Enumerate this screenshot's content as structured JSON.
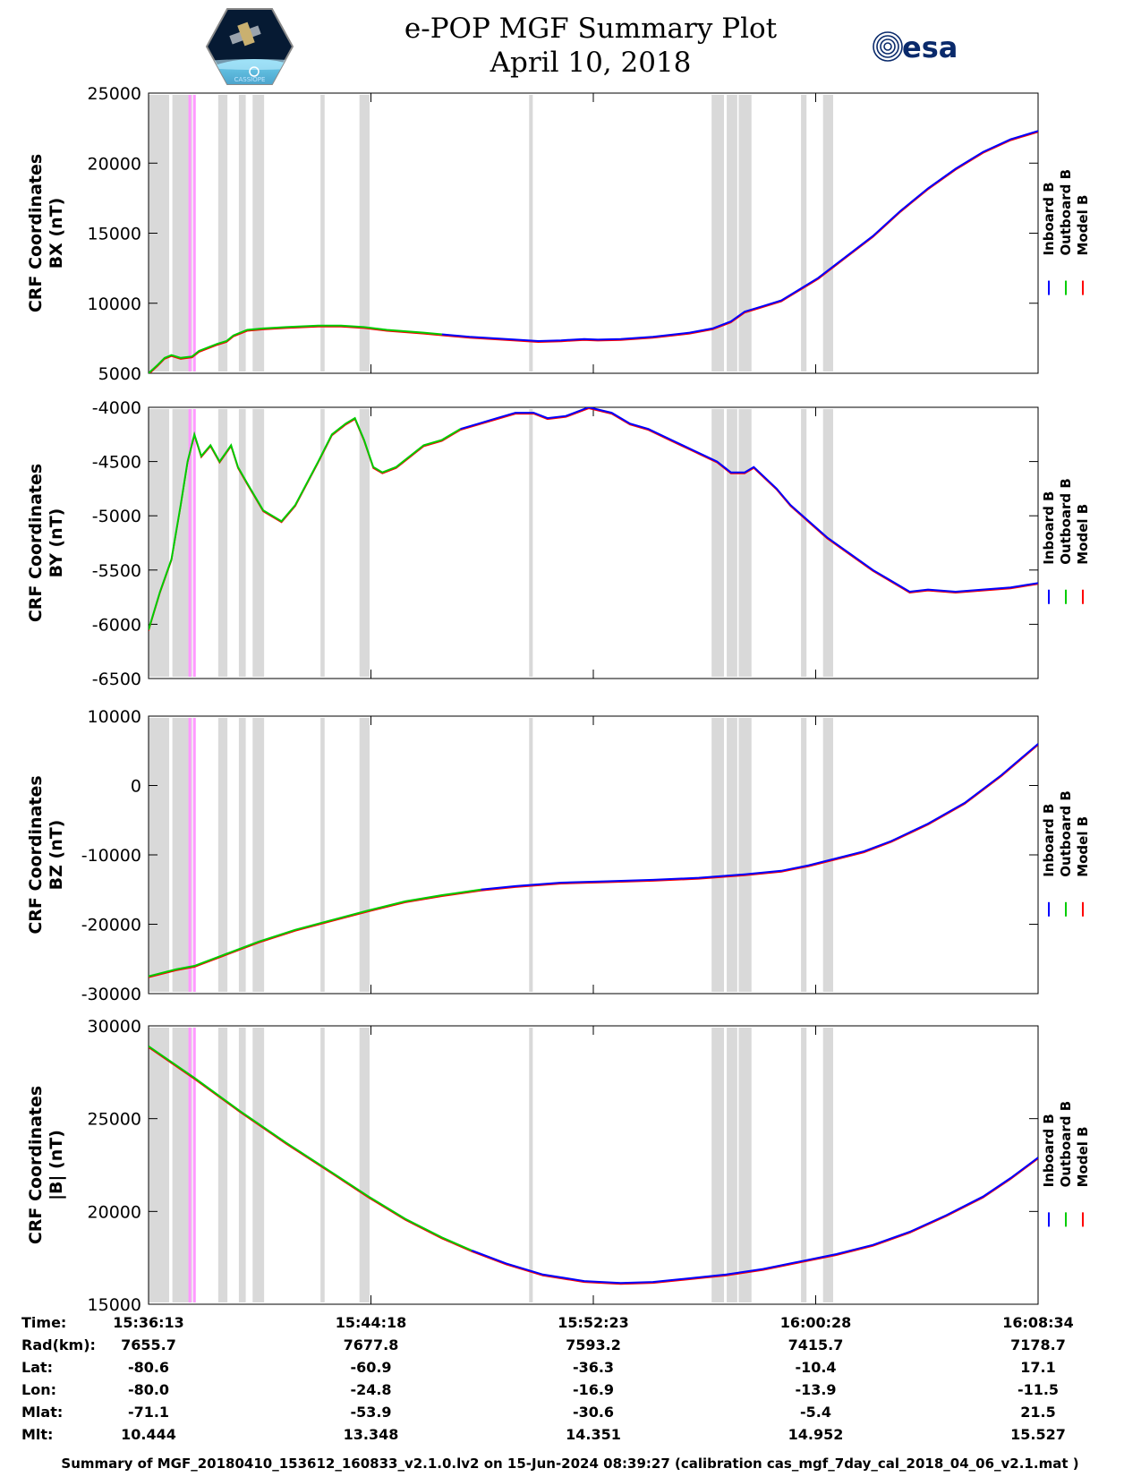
{
  "header": {
    "title": "e-POP MGF Summary Plot",
    "date": "April 10, 2018",
    "left_logo_text": "CASSIOPE",
    "right_logo_text": "esa"
  },
  "colors": {
    "inboard": "#0000ff",
    "outboard": "#00cc00",
    "model": "#ff0000",
    "shade": "#d9d9d9",
    "highlight": "#ff99ff"
  },
  "chart_data": {
    "type": "line",
    "x": {
      "tmin_s": 0,
      "tmax_s": 1940
    },
    "shade_intervals_s": [
      [
        0,
        45
      ],
      [
        52,
        95
      ],
      [
        152,
        172
      ],
      [
        197,
        212
      ],
      [
        227,
        252
      ],
      [
        375,
        384
      ],
      [
        460,
        482
      ],
      [
        830,
        838
      ],
      [
        1228,
        1255
      ],
      [
        1261,
        1284
      ],
      [
        1287,
        1315
      ],
      [
        1423,
        1435
      ],
      [
        1471,
        1493
      ]
    ],
    "highlight_intervals_s": [
      [
        87,
        93
      ],
      [
        97,
        103
      ]
    ],
    "legend": [
      "Inboard B",
      "Outboard B",
      "Model B"
    ],
    "panels": [
      {
        "name": "bx",
        "ylabel1": "CRF Coordinates",
        "ylabel2": "BX (nT)",
        "ylim": [
          5000,
          25000
        ],
        "yticks": [
          5000,
          10000,
          15000,
          20000,
          25000
        ],
        "yticklabels": [
          "5000",
          "10000",
          "15000",
          "20000",
          "25000"
        ],
        "switch_t": 640,
        "points": [
          [
            0,
            5000
          ],
          [
            20,
            5600
          ],
          [
            35,
            6100
          ],
          [
            50,
            6300
          ],
          [
            70,
            6100
          ],
          [
            95,
            6200
          ],
          [
            110,
            6600
          ],
          [
            150,
            7100
          ],
          [
            170,
            7300
          ],
          [
            185,
            7700
          ],
          [
            215,
            8100
          ],
          [
            250,
            8200
          ],
          [
            300,
            8300
          ],
          [
            370,
            8400
          ],
          [
            420,
            8400
          ],
          [
            470,
            8300
          ],
          [
            520,
            8100
          ],
          [
            600,
            7900
          ],
          [
            700,
            7600
          ],
          [
            800,
            7400
          ],
          [
            850,
            7300
          ],
          [
            900,
            7350
          ],
          [
            950,
            7450
          ],
          [
            980,
            7400
          ],
          [
            1030,
            7450
          ],
          [
            1100,
            7600
          ],
          [
            1180,
            7900
          ],
          [
            1230,
            8200
          ],
          [
            1270,
            8700
          ],
          [
            1300,
            9400
          ],
          [
            1340,
            9800
          ],
          [
            1380,
            10200
          ],
          [
            1420,
            11000
          ],
          [
            1460,
            11800
          ],
          [
            1520,
            13300
          ],
          [
            1580,
            14800
          ],
          [
            1640,
            16600
          ],
          [
            1700,
            18200
          ],
          [
            1760,
            19600
          ],
          [
            1820,
            20800
          ],
          [
            1880,
            21700
          ],
          [
            1940,
            22300
          ]
        ]
      },
      {
        "name": "by",
        "ylabel1": "CRF Coordinates",
        "ylabel2": "BY (nT)",
        "ylim": [
          -6500,
          -4000
        ],
        "yticks": [
          -6500,
          -6000,
          -5500,
          -5000,
          -4500,
          -4000
        ],
        "yticklabels": [
          "-6500",
          "-6000",
          "-5500",
          "-5000",
          "-4500",
          "-4000"
        ],
        "switch_t": 680,
        "points": [
          [
            0,
            -6050
          ],
          [
            25,
            -5700
          ],
          [
            50,
            -5400
          ],
          [
            70,
            -4900
          ],
          [
            85,
            -4500
          ],
          [
            100,
            -4250
          ],
          [
            115,
            -4450
          ],
          [
            135,
            -4350
          ],
          [
            155,
            -4500
          ],
          [
            180,
            -4350
          ],
          [
            195,
            -4550
          ],
          [
            215,
            -4700
          ],
          [
            250,
            -4950
          ],
          [
            290,
            -5050
          ],
          [
            320,
            -4900
          ],
          [
            370,
            -4500
          ],
          [
            400,
            -4250
          ],
          [
            430,
            -4150
          ],
          [
            450,
            -4100
          ],
          [
            470,
            -4300
          ],
          [
            490,
            -4550
          ],
          [
            510,
            -4600
          ],
          [
            540,
            -4550
          ],
          [
            570,
            -4450
          ],
          [
            600,
            -4350
          ],
          [
            640,
            -4300
          ],
          [
            680,
            -4200
          ],
          [
            720,
            -4150
          ],
          [
            760,
            -4100
          ],
          [
            800,
            -4050
          ],
          [
            840,
            -4050
          ],
          [
            870,
            -4100
          ],
          [
            910,
            -4080
          ],
          [
            960,
            -4000
          ],
          [
            1010,
            -4050
          ],
          [
            1050,
            -4150
          ],
          [
            1090,
            -4200
          ],
          [
            1140,
            -4300
          ],
          [
            1190,
            -4400
          ],
          [
            1240,
            -4500
          ],
          [
            1270,
            -4600
          ],
          [
            1300,
            -4600
          ],
          [
            1320,
            -4550
          ],
          [
            1345,
            -4650
          ],
          [
            1370,
            -4750
          ],
          [
            1400,
            -4900
          ],
          [
            1440,
            -5050
          ],
          [
            1480,
            -5200
          ],
          [
            1530,
            -5350
          ],
          [
            1580,
            -5500
          ],
          [
            1620,
            -5600
          ],
          [
            1660,
            -5700
          ],
          [
            1700,
            -5680
          ],
          [
            1760,
            -5700
          ],
          [
            1820,
            -5680
          ],
          [
            1880,
            -5660
          ],
          [
            1940,
            -5620
          ]
        ]
      },
      {
        "name": "bz",
        "ylabel1": "CRF Coordinates",
        "ylabel2": "BZ (nT)",
        "ylim": [
          -30000,
          10000
        ],
        "yticks": [
          -30000,
          -20000,
          -10000,
          0,
          10000
        ],
        "yticklabels": [
          "-30000",
          "-20000",
          "-10000",
          "0",
          "10000"
        ],
        "switch_t": 725,
        "points": [
          [
            0,
            -27500
          ],
          [
            60,
            -26500
          ],
          [
            100,
            -26000
          ],
          [
            160,
            -24500
          ],
          [
            240,
            -22500
          ],
          [
            320,
            -20800
          ],
          [
            400,
            -19400
          ],
          [
            480,
            -18000
          ],
          [
            560,
            -16700
          ],
          [
            640,
            -15800
          ],
          [
            725,
            -15000
          ],
          [
            800,
            -14500
          ],
          [
            900,
            -14000
          ],
          [
            1000,
            -13800
          ],
          [
            1100,
            -13600
          ],
          [
            1200,
            -13300
          ],
          [
            1300,
            -12800
          ],
          [
            1380,
            -12300
          ],
          [
            1440,
            -11500
          ],
          [
            1500,
            -10500
          ],
          [
            1560,
            -9500
          ],
          [
            1620,
            -8000
          ],
          [
            1700,
            -5500
          ],
          [
            1780,
            -2500
          ],
          [
            1860,
            1500
          ],
          [
            1940,
            6000
          ]
        ]
      },
      {
        "name": "bmag",
        "ylabel1": "CRF Coordinates",
        "ylabel2": "|B| (nT)",
        "ylim": [
          15000,
          30000
        ],
        "yticks": [
          15000,
          20000,
          25000,
          30000
        ],
        "yticklabels": [
          "15000",
          "20000",
          "25000",
          "30000"
        ],
        "switch_t": 705,
        "points": [
          [
            0,
            28900
          ],
          [
            100,
            27200
          ],
          [
            200,
            25400
          ],
          [
            300,
            23700
          ],
          [
            400,
            22100
          ],
          [
            480,
            20800
          ],
          [
            560,
            19600
          ],
          [
            640,
            18600
          ],
          [
            705,
            17900
          ],
          [
            780,
            17200
          ],
          [
            860,
            16600
          ],
          [
            950,
            16250
          ],
          [
            1030,
            16150
          ],
          [
            1100,
            16200
          ],
          [
            1180,
            16400
          ],
          [
            1260,
            16600
          ],
          [
            1340,
            16900
          ],
          [
            1420,
            17300
          ],
          [
            1500,
            17700
          ],
          [
            1580,
            18200
          ],
          [
            1660,
            18900
          ],
          [
            1740,
            19800
          ],
          [
            1820,
            20800
          ],
          [
            1880,
            21800
          ],
          [
            1940,
            22900
          ]
        ]
      }
    ]
  },
  "ephemeris": {
    "labels": [
      "Time:",
      "Rad(km):",
      "Lat:",
      "Lon:",
      "Mlat:",
      "Mlt:"
    ],
    "columns": [
      [
        "15:36:13",
        "7655.7",
        "-80.6",
        "-80.0",
        "-71.1",
        "10.444"
      ],
      [
        "15:44:18",
        "7677.8",
        "-60.9",
        "-24.8",
        "-53.9",
        "13.348"
      ],
      [
        "15:52:23",
        "7593.2",
        "-36.3",
        "-16.9",
        "-30.6",
        "14.351"
      ],
      [
        "16:00:28",
        "7415.7",
        "-10.4",
        "-13.9",
        "-5.4",
        "14.952"
      ],
      [
        "16:08:34",
        "7178.7",
        "17.1",
        "-11.5",
        "21.5",
        "15.527"
      ]
    ]
  },
  "footer": "Summary of MGF_20180410_153612_160833_v2.1.0.lv2 on 15-Jun-2024 08:39:27 (calibration cas_mgf_7day_cal_2018_04_06_v2.1.mat )"
}
